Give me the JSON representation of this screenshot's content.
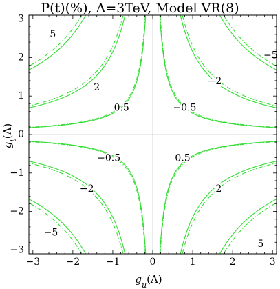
{
  "chart_data": {
    "type": "line",
    "title": "P(t)(%), Λ=3TeV, Model VR(8)",
    "xlabel": "g_u(Λ)",
    "ylabel": "g_t(Λ)",
    "xlim": [
      -3.1,
      3.1
    ],
    "ylim": [
      -3.1,
      3.1
    ],
    "xticks": [
      -3,
      -2,
      -1,
      0,
      1,
      2,
      3
    ],
    "yticks": [
      -3,
      -2,
      -1,
      0,
      1,
      2,
      3
    ],
    "xtick_labels": [
      "−3",
      "−2",
      "−1",
      "0",
      "1",
      "2",
      "3"
    ],
    "ytick_labels": [
      "−3",
      "−2",
      "−1",
      "0",
      "1",
      "2",
      "3"
    ],
    "grid": false,
    "zero_lines": true,
    "line_color": "#33dd33",
    "contour_levels": [
      {
        "level": 0.5,
        "label": "0.5",
        "series": [
          {
            "style": "solid",
            "k": 0.55
          },
          {
            "style": "dashdot",
            "k": 0.58
          }
        ]
      },
      {
        "level": 2,
        "label": "2",
        "series": [
          {
            "style": "solid",
            "k": 2.15
          },
          {
            "style": "dashdot",
            "k": 2.3
          }
        ]
      },
      {
        "level": 5,
        "label": "5",
        "series": [
          {
            "style": "solid",
            "k": 5.2
          },
          {
            "style": "dashdot",
            "k": 5.5
          }
        ]
      },
      {
        "level": -0.5,
        "label": "−0.5",
        "series": [
          {
            "style": "solid",
            "k": -0.55
          },
          {
            "style": "dashdot",
            "k": -0.58
          }
        ]
      },
      {
        "level": -2,
        "label": "−2",
        "series": [
          {
            "style": "solid",
            "k": -2.15
          },
          {
            "style": "dashdot",
            "k": -2.3
          }
        ]
      },
      {
        "level": -5,
        "label": "−5",
        "series": [
          {
            "style": "solid",
            "k": -5.2
          },
          {
            "style": "dashdot",
            "k": -5.5
          }
        ]
      }
    ],
    "contour_labels": [
      {
        "text": "5",
        "x": -2.5,
        "y": 2.6
      },
      {
        "text": "2",
        "x": -1.4,
        "y": 1.22
      },
      {
        "text": "0.5",
        "x": -0.78,
        "y": 0.69
      },
      {
        "text": "−5",
        "x": 2.95,
        "y": 2.05
      },
      {
        "text": "−2",
        "x": 1.55,
        "y": 1.38
      },
      {
        "text": "−0.5",
        "x": 0.8,
        "y": 0.69
      },
      {
        "text": "−0.5",
        "x": -1.1,
        "y": -0.62
      },
      {
        "text": "0.5",
        "x": 0.75,
        "y": -0.62
      },
      {
        "text": "−2",
        "x": -1.65,
        "y": -1.42
      },
      {
        "text": "2",
        "x": 1.65,
        "y": -1.42
      },
      {
        "text": "−5",
        "x": -2.55,
        "y": -2.55
      },
      {
        "text": "5",
        "x": 2.7,
        "y": -2.85
      }
    ]
  }
}
